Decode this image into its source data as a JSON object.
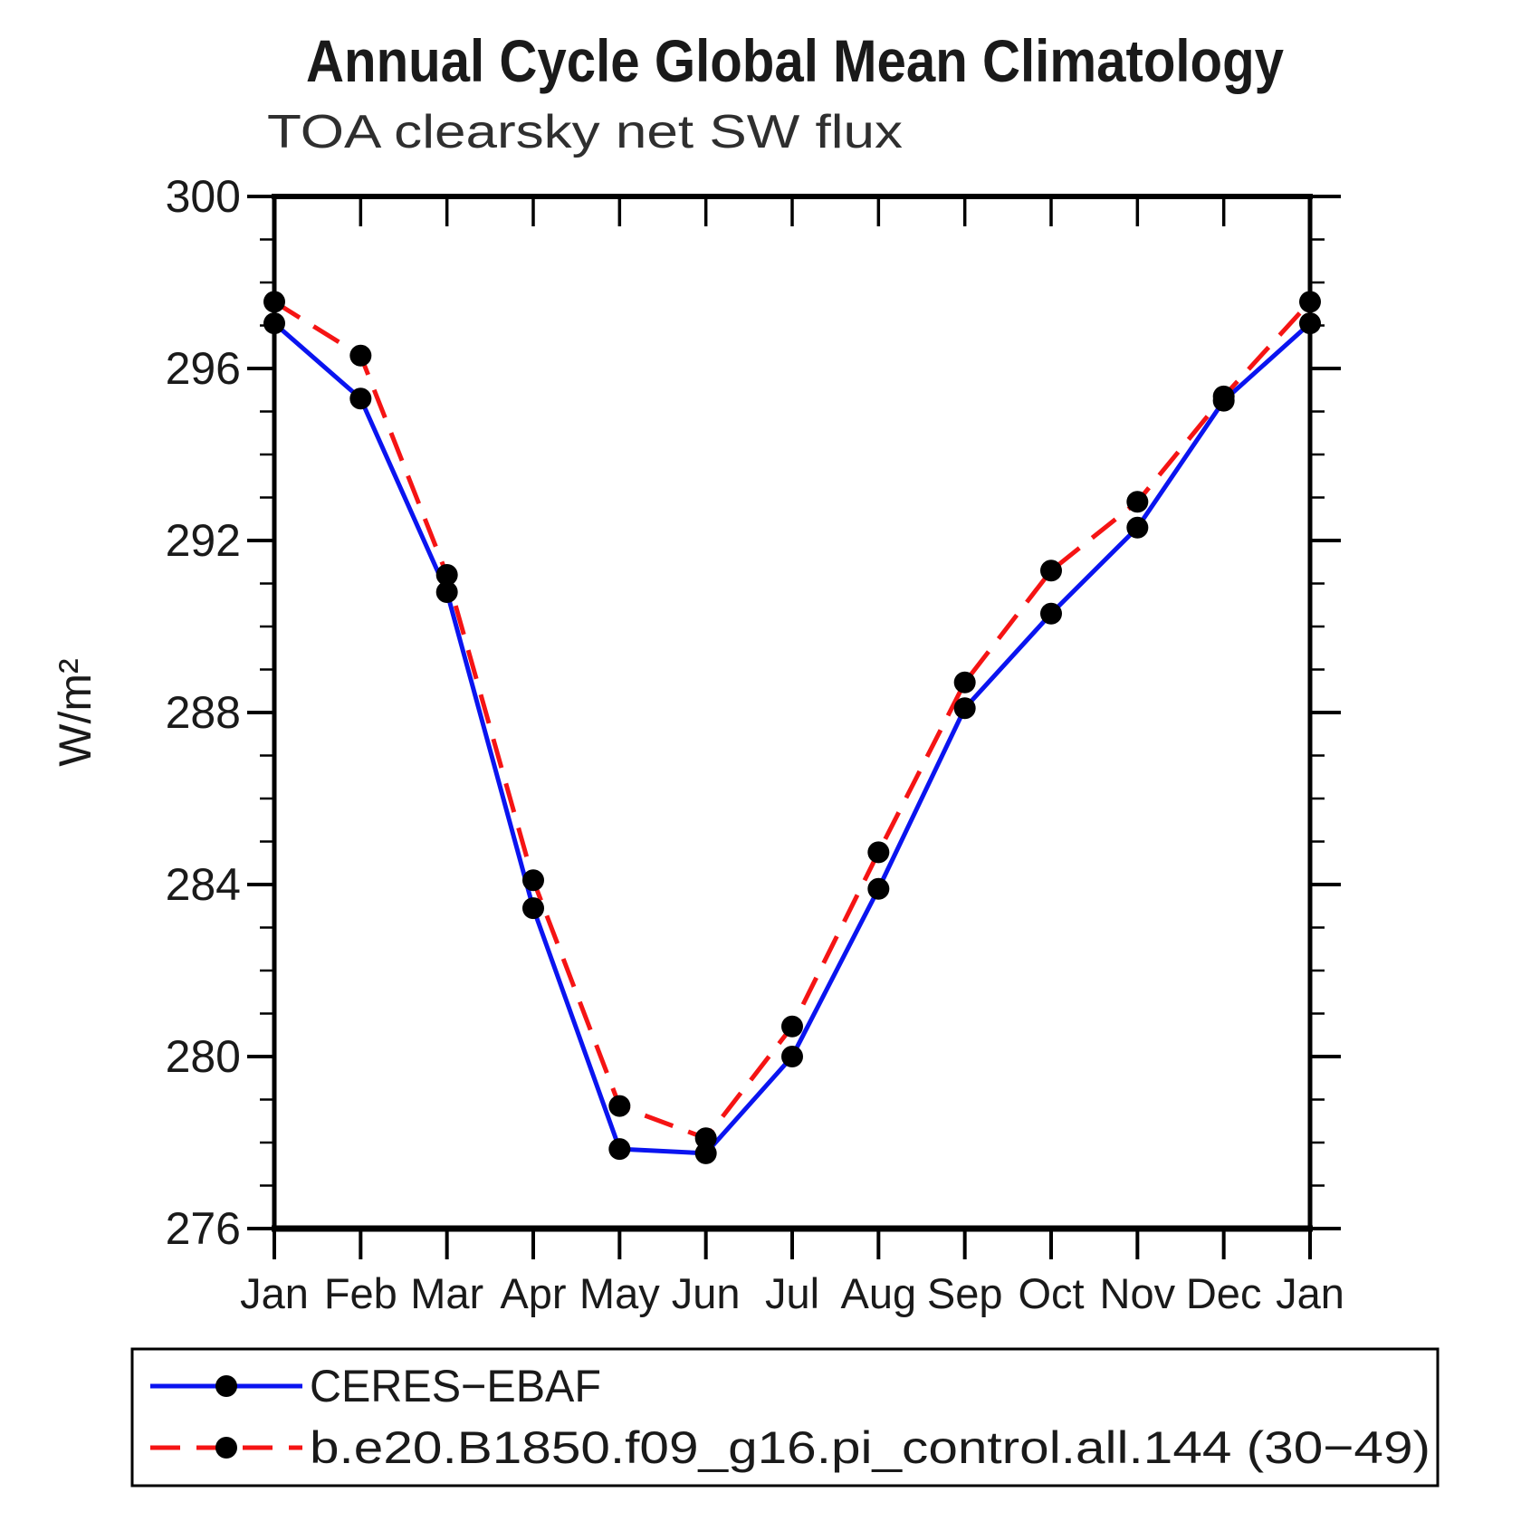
{
  "title": "Annual Cycle Global Mean Climatology",
  "subtitle": "TOA clearsky net SW flux",
  "y_axis_label": "W/m²",
  "legend": {
    "entries": [
      {
        "label": "CERES−EBAF"
      },
      {
        "label": "b.e20.B1850.f09_g16.pi_control.all.144 (30−49)"
      }
    ]
  },
  "chart_data": {
    "type": "line",
    "categories": [
      "Jan",
      "Feb",
      "Mar",
      "Apr",
      "May",
      "Jun",
      "Jul",
      "Aug",
      "Sep",
      "Oct",
      "Nov",
      "Dec",
      "Jan"
    ],
    "series": [
      {
        "name": "CERES−EBAF",
        "color": "#0a14f0",
        "line_style": "solid",
        "marker": "black-circle",
        "values": [
          297.05,
          295.3,
          290.8,
          283.45,
          277.85,
          277.75,
          280.0,
          283.9,
          288.1,
          290.3,
          292.3,
          295.25,
          297.05
        ]
      },
      {
        "name": "b.e20.B1850.f09_g16.pi_control.all.144 (30−49)",
        "color": "#f51414",
        "line_style": "dashed",
        "marker": "black-circle",
        "values": [
          297.55,
          296.3,
          291.2,
          284.1,
          278.85,
          278.1,
          280.7,
          284.75,
          288.7,
          291.3,
          292.9,
          295.35,
          297.55
        ]
      }
    ],
    "title": "Annual Cycle Global Mean Climatology",
    "subtitle": "TOA clearsky net SW flux",
    "xlabel": "",
    "ylabel": "W/m²",
    "ylim": [
      276,
      300
    ],
    "yticks": [
      276,
      280,
      284,
      288,
      292,
      296,
      300
    ],
    "ytick_step": 4,
    "yminor_step": 1,
    "grid": false,
    "legend_position": "bottom",
    "marker_color": "#000000"
  }
}
